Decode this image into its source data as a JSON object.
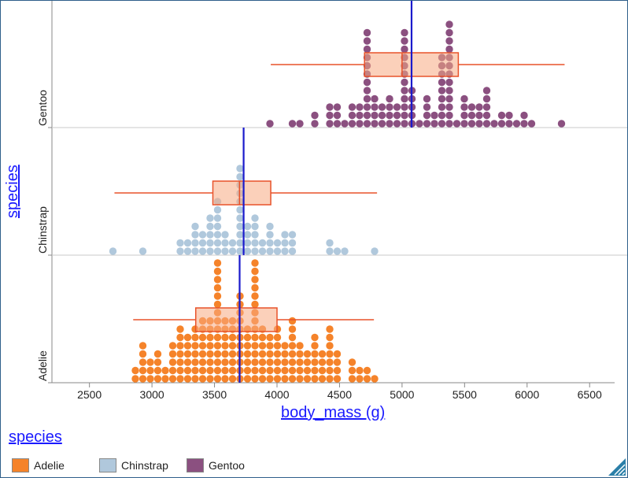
{
  "chart_data": {
    "type": "dotplot-boxplot",
    "xlabel": "body_mass (g)",
    "ylabel": "species",
    "xlim": [
      2200,
      6700
    ],
    "xticks": [
      2500,
      3000,
      3500,
      4000,
      4500,
      5000,
      5500,
      6000,
      6500
    ],
    "grid": false,
    "categories": [
      "Gentoo",
      "Chinstrap",
      "Adelie"
    ],
    "series": [
      {
        "name": "Gentoo",
        "color": "#8b5080",
        "mean": 5076,
        "box": {
          "min": 3950,
          "q1": 4700,
          "median": 5000,
          "q3": 5450,
          "max": 6300
        },
        "values": [
          3950,
          4100,
          4300,
          4400,
          4450,
          4500,
          4550,
          4600,
          4650,
          4700,
          4750,
          4800,
          4850,
          4900,
          4950,
          5000,
          5050,
          5100,
          5150,
          5200,
          5250,
          5300,
          5350,
          5400,
          5450,
          5500,
          5550,
          5600,
          5650,
          5700,
          5750,
          5800,
          5850,
          5900,
          5950,
          6000,
          6050,
          6300,
          4400,
          4500,
          4600,
          4700,
          4750,
          4800,
          4850,
          4900,
          5000,
          5050,
          5100,
          5200,
          5300,
          5350,
          5400,
          5500,
          5550,
          5600,
          5700,
          5800,
          5850,
          4200,
          4500,
          4600,
          4700,
          4800,
          4850,
          4950,
          5000,
          5100,
          5200,
          5300,
          5400,
          5500,
          5600,
          5700,
          4300,
          4700,
          4750,
          4800,
          4900,
          4950,
          5000,
          5200,
          5250,
          5300,
          5400,
          5500,
          5550,
          5650,
          4650,
          4700,
          4750,
          4900,
          5000,
          5300,
          5350,
          5400,
          4650,
          4700,
          5000,
          5300,
          5350,
          5400,
          4700,
          5000,
          5300,
          5400,
          4750,
          5000,
          5300,
          5350,
          5000,
          5300,
          5000,
          5350,
          5000,
          5000
        ]
      },
      {
        "name": "Chinstrap",
        "color": "#b0c8dc",
        "mean": 3733,
        "box": {
          "min": 2700,
          "q1": 3487,
          "median": 3700,
          "q3": 3950,
          "max": 4800
        },
        "values": [
          2700,
          2900,
          3250,
          3300,
          3325,
          3350,
          3400,
          3450,
          3475,
          3500,
          3525,
          3550,
          3575,
          3600,
          3650,
          3675,
          3700,
          3725,
          3750,
          3775,
          3800,
          3850,
          3900,
          3950,
          4000,
          4050,
          4100,
          4150,
          4400,
          4450,
          4500,
          4550,
          4800,
          3300,
          3350,
          3400,
          3450,
          3500,
          3550,
          3650,
          3700,
          3750,
          3800,
          3900,
          3950,
          4000,
          4100,
          3250,
          3350,
          3400,
          3450,
          3500,
          3600,
          3700,
          3800,
          3950,
          4050,
          3450,
          3550,
          3700,
          3800,
          3950,
          4050,
          3700,
          3750,
          3700,
          3700,
          3725,
          3700
        ]
      },
      {
        "name": "Adelie",
        "color": "#f5832a",
        "mean": 3701,
        "box": {
          "min": 2850,
          "q1": 3350,
          "median": 3700,
          "q3": 4000,
          "max": 4775
        },
        "values": [
          2850,
          2900,
          2925,
          2975,
          3050,
          3075,
          3150,
          3175,
          3250,
          3275,
          3325,
          3350,
          3400,
          3425,
          3450,
          3475,
          3500,
          3525,
          3550,
          3575,
          3600,
          3625,
          3650,
          3675,
          3700,
          3725,
          3750,
          3775,
          3800,
          3825,
          3850,
          3875,
          3900,
          3925,
          3950,
          3975,
          4000,
          4025,
          4050,
          4100,
          4125,
          4150,
          4200,
          4250,
          4275,
          4300,
          4350,
          4400,
          4425,
          4450,
          4475,
          4500,
          4575,
          4600,
          4650,
          4700,
          4775,
          2900,
          2925,
          3000,
          3075,
          3150,
          3200,
          3250,
          3300,
          3350,
          3400,
          3425,
          3450,
          3475,
          3500,
          3525,
          3550,
          3575,
          3600,
          3650,
          3675,
          3700,
          3725,
          3750,
          3775,
          3800,
          3825,
          3850,
          3900,
          3950,
          3975,
          4000,
          4050,
          4100,
          4150,
          4200,
          4250,
          4300,
          4350,
          4400,
          4450,
          4500,
          4650,
          4700,
          2850,
          2950,
          3050,
          3100,
          3150,
          3200,
          3250,
          3300,
          3325,
          3350,
          3400,
          3450,
          3500,
          3550,
          3600,
          3650,
          3700,
          3750,
          3800,
          3850,
          3900,
          3950,
          4000,
          4050,
          4100,
          4200,
          4250,
          4300,
          4350,
          4400,
          4500,
          4600,
          3000,
          3100,
          3200,
          3300,
          3350,
          3400,
          3450,
          3500,
          3550,
          3600,
          3650,
          3700,
          3750,
          3800,
          3850,
          3900,
          4000,
          4050,
          4100,
          4200,
          4300,
          4400,
          3150,
          3250,
          3300,
          3400,
          3450,
          3500,
          3550,
          3600,
          3650,
          3700,
          3750,
          3800,
          3850,
          3900,
          3950,
          4050,
          4150,
          4250,
          4300,
          4350,
          3300,
          3350,
          3450,
          3550,
          3600,
          3650,
          3700,
          3800,
          3850,
          3950,
          4200,
          3400,
          3550,
          3650,
          3700,
          3800,
          3900,
          3550
        ]
      }
    ]
  },
  "legend": {
    "title": "species",
    "items": [
      {
        "label": "Adelie",
        "color": "#f5832a"
      },
      {
        "label": "Chinstrap",
        "color": "#b0c8dc"
      },
      {
        "label": "Gentoo",
        "color": "#8b5080"
      }
    ]
  }
}
